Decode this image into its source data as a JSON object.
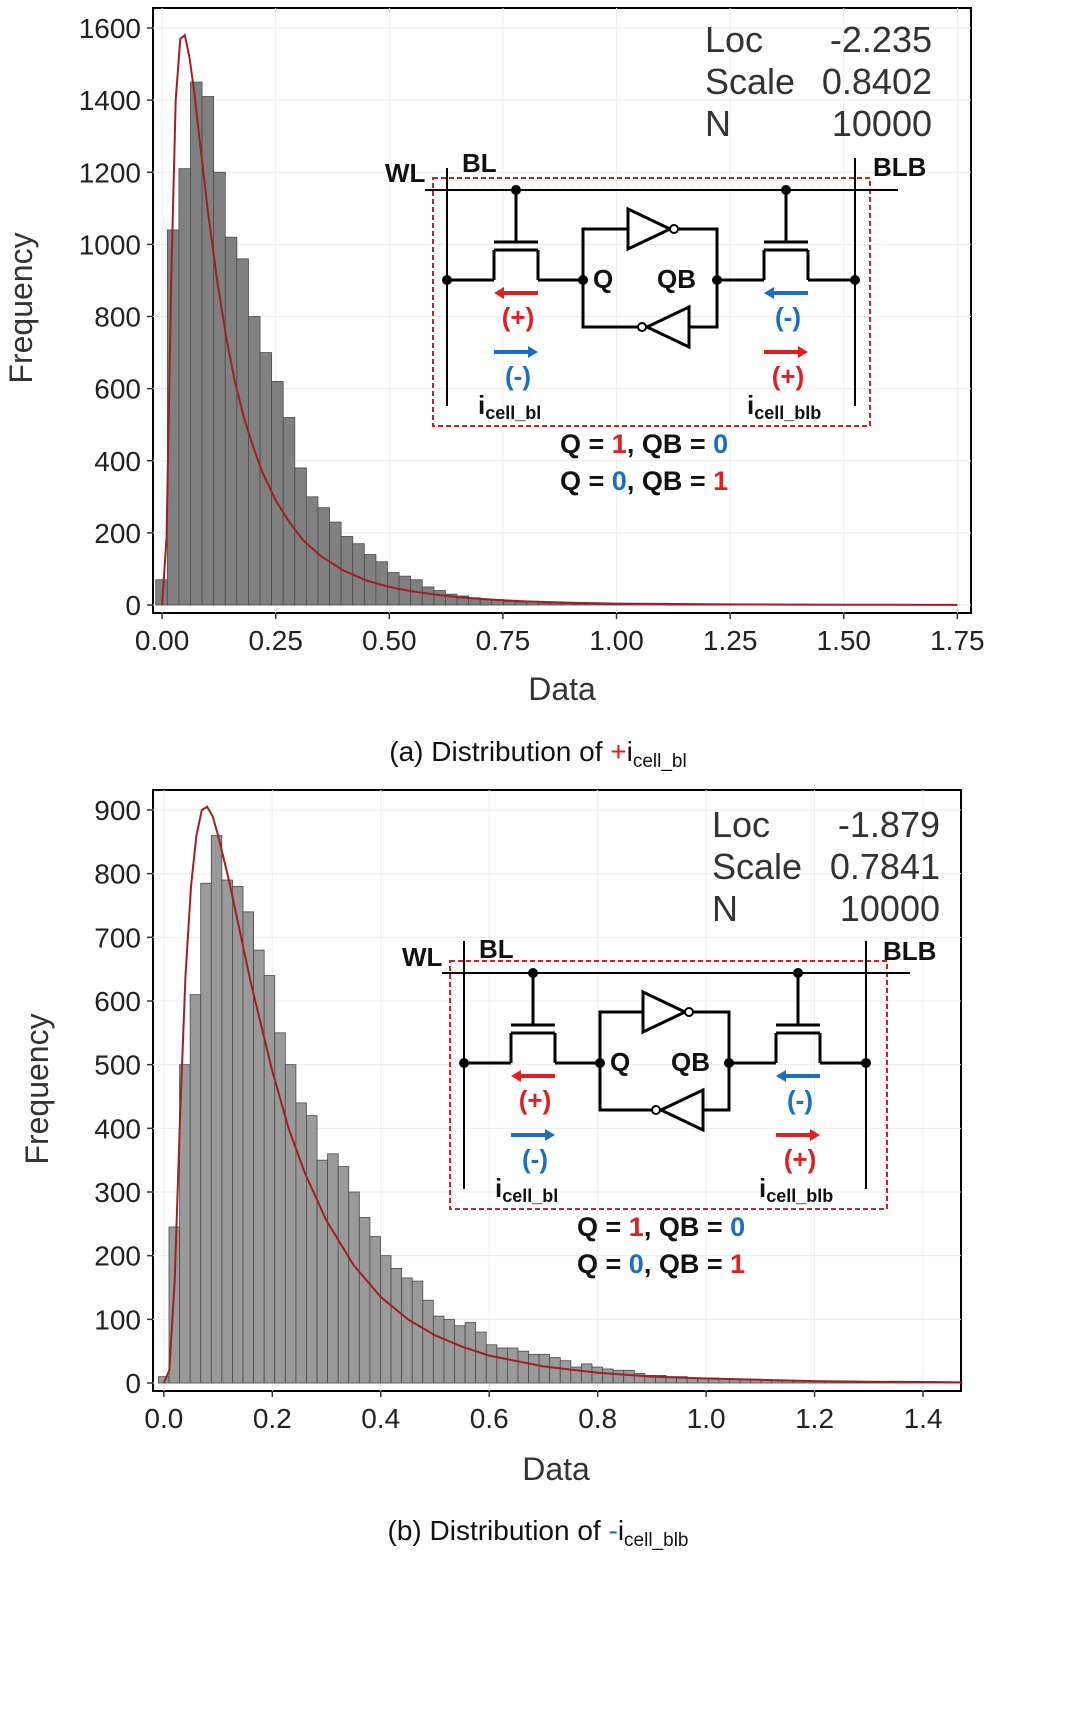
{
  "colors": {
    "bar": "#808080",
    "bar_b": "#9a9a9a",
    "curve": "#a02020",
    "red": "#e02020",
    "blue": "#1a6fc0"
  },
  "chart_data": [
    {
      "id": "a",
      "type": "bar",
      "xlabel": "Data",
      "ylabel": "Frequency",
      "xlim": [
        -0.02,
        1.78
      ],
      "ylim": [
        0,
        1600
      ],
      "xticks": [
        "0.00",
        "0.25",
        "0.50",
        "0.75",
        "1.00",
        "1.25",
        "1.50",
        "1.75"
      ],
      "xtick_values": [
        0,
        0.25,
        0.5,
        0.75,
        1.0,
        1.25,
        1.5,
        1.75
      ],
      "yticks": [
        "0",
        "200",
        "400",
        "600",
        "800",
        "1000",
        "1200",
        "1400",
        "1600"
      ],
      "ytick_values": [
        0,
        200,
        400,
        600,
        800,
        1000,
        1200,
        1400,
        1600
      ],
      "bin_start": -0.014,
      "bin_width": 0.0255,
      "values": [
        70,
        1040,
        1210,
        1450,
        1410,
        1200,
        1020,
        960,
        800,
        700,
        620,
        520,
        380,
        300,
        270,
        230,
        190,
        170,
        140,
        120,
        90,
        80,
        70,
        50,
        40,
        30,
        25,
        20,
        15,
        15,
        10,
        8,
        8,
        5,
        5,
        4,
        3,
        3,
        3,
        2,
        2,
        2,
        2,
        2,
        1,
        1,
        1,
        1,
        1,
        1,
        0,
        0,
        0,
        0,
        0,
        0,
        0,
        0,
        0,
        0,
        0,
        0,
        0,
        0,
        0,
        0,
        0
      ],
      "fit_curve": {
        "name": "fit",
        "x": [
          0.0,
          0.01,
          0.02,
          0.03,
          0.04,
          0.05,
          0.06,
          0.07,
          0.08,
          0.09,
          0.1,
          0.12,
          0.14,
          0.16,
          0.18,
          0.2,
          0.22,
          0.25,
          0.28,
          0.31,
          0.35,
          0.4,
          0.45,
          0.5,
          0.55,
          0.6,
          0.65,
          0.7,
          0.75,
          0.8,
          0.9,
          1.0,
          1.1,
          1.2,
          1.3,
          1.4,
          1.5,
          1.6,
          1.7,
          1.75
        ],
        "y": [
          0,
          190,
          900,
          1400,
          1570,
          1580,
          1520,
          1430,
          1320,
          1210,
          1100,
          910,
          750,
          620,
          520,
          440,
          370,
          290,
          230,
          180,
          135,
          95,
          68,
          50,
          38,
          29,
          22,
          17,
          13,
          10,
          6,
          4,
          3,
          2,
          1.5,
          1,
          0.7,
          0.5,
          0.3,
          0.3
        ]
      },
      "stats": {
        "labels": [
          "Loc",
          "Scale",
          "N"
        ],
        "values": [
          "-2.235",
          "0.8402",
          "10000"
        ]
      },
      "caption": {
        "prefix": "(a) Distribution of ",
        "sign": "+",
        "i": "i",
        "sub": "cell_bl"
      }
    },
    {
      "id": "b",
      "type": "bar",
      "xlabel": "Data",
      "ylabel": "Frequency",
      "xlim": [
        -0.02,
        1.47
      ],
      "ylim": [
        0,
        900
      ],
      "xticks": [
        "0.0",
        "0.2",
        "0.4",
        "0.6",
        "0.8",
        "1.0",
        "1.2",
        "1.4"
      ],
      "xtick_values": [
        0,
        0.2,
        0.4,
        0.6,
        0.8,
        1.0,
        1.2,
        1.4
      ],
      "yticks": [
        "0",
        "100",
        "200",
        "300",
        "400",
        "500",
        "600",
        "700",
        "800",
        "900"
      ],
      "ytick_values": [
        0,
        100,
        200,
        300,
        400,
        500,
        600,
        700,
        800,
        900
      ],
      "bin_start": -0.01,
      "bin_width": 0.0195,
      "values": [
        10,
        245,
        500,
        610,
        785,
        860,
        790,
        780,
        740,
        680,
        640,
        550,
        500,
        440,
        420,
        350,
        360,
        340,
        300,
        260,
        230,
        200,
        180,
        165,
        160,
        130,
        105,
        100,
        90,
        95,
        80,
        60,
        55,
        55,
        50,
        45,
        45,
        40,
        35,
        25,
        30,
        25,
        22,
        20,
        20,
        15,
        12,
        12,
        10,
        10,
        8,
        8,
        8,
        6,
        6,
        5,
        5,
        5,
        4,
        4,
        3,
        3,
        3,
        3,
        3,
        3,
        2,
        2,
        2,
        2,
        2,
        2,
        2,
        2,
        1,
        1
      ],
      "fit_curve": {
        "name": "fit",
        "x": [
          0.0,
          0.01,
          0.02,
          0.03,
          0.04,
          0.05,
          0.06,
          0.07,
          0.08,
          0.09,
          0.1,
          0.12,
          0.14,
          0.16,
          0.18,
          0.2,
          0.23,
          0.26,
          0.3,
          0.35,
          0.4,
          0.45,
          0.5,
          0.55,
          0.6,
          0.7,
          0.8,
          0.9,
          1.0,
          1.1,
          1.2,
          1.3,
          1.4,
          1.47
        ],
        "y": [
          0,
          20,
          160,
          420,
          640,
          780,
          860,
          900,
          905,
          890,
          860,
          790,
          710,
          630,
          560,
          490,
          400,
          330,
          255,
          185,
          135,
          100,
          75,
          57,
          43,
          26,
          16,
          10,
          7,
          5,
          3,
          2,
          1.5,
          1
        ]
      },
      "stats": {
        "labels": [
          "Loc",
          "Scale",
          "N"
        ],
        "values": [
          "-1.879",
          "0.7841",
          "10000"
        ]
      },
      "caption": {
        "prefix": "(b) Distribution of ",
        "sign": "-",
        "i": "i",
        "sub": "cell_blb"
      }
    }
  ],
  "circuit": {
    "wl": "WL",
    "bl": "BL",
    "blb": "BLB",
    "q": "Q",
    "qb": "QB",
    "plus": "(+)",
    "minus": "(-)",
    "i": "i",
    "sub_bl": "cell_bl",
    "sub_blb": "cell_blb",
    "eq1": {
      "a": "Q = ",
      "b": "1",
      ",c": "",
      "c": ", QB = ",
      "d": "0"
    },
    "eq2": {
      "a": "Q = ",
      "b": "0",
      "c": ", QB = ",
      "d": "1"
    }
  }
}
